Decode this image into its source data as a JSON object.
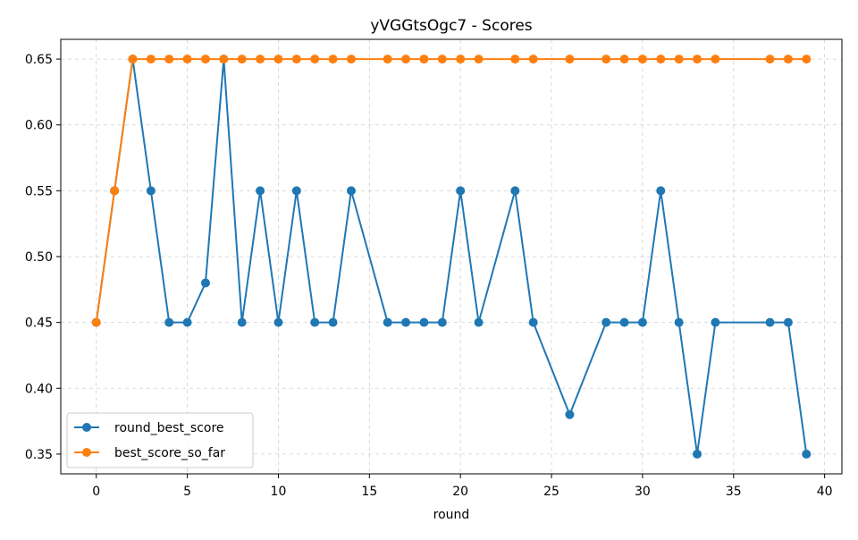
{
  "chart_data": {
    "type": "line",
    "title": "yVGGtsOgc7 - Scores",
    "xlabel": "round",
    "ylabel": "",
    "xlim": [
      -1.95,
      40.95
    ],
    "ylim": [
      0.335,
      0.665
    ],
    "x_ticks": [
      0,
      5,
      10,
      15,
      20,
      25,
      30,
      35,
      40
    ],
    "y_ticks": [
      0.35,
      0.4,
      0.45,
      0.5,
      0.55,
      0.6,
      0.65
    ],
    "grid": true,
    "legend_position": "lower-left",
    "series": [
      {
        "name": "round_best_score",
        "color": "#1f77b4",
        "x": [
          0,
          1,
          2,
          3,
          4,
          5,
          6,
          7,
          8,
          9,
          10,
          11,
          12,
          13,
          14,
          16,
          17,
          18,
          19,
          20,
          21,
          23,
          24,
          26,
          28,
          29,
          30,
          31,
          32,
          33,
          34,
          37,
          38,
          39
        ],
        "y": [
          0.45,
          0.55,
          0.65,
          0.55,
          0.45,
          0.45,
          0.48,
          0.65,
          0.45,
          0.55,
          0.45,
          0.55,
          0.45,
          0.45,
          0.55,
          0.45,
          0.45,
          0.45,
          0.45,
          0.55,
          0.45,
          0.55,
          0.45,
          0.38,
          0.45,
          0.45,
          0.45,
          0.55,
          0.45,
          0.35,
          0.45,
          0.45,
          0.45,
          0.35
        ]
      },
      {
        "name": "best_score_so_far",
        "color": "#ff7f0e",
        "x": [
          0,
          1,
          2,
          3,
          4,
          5,
          6,
          7,
          8,
          9,
          10,
          11,
          12,
          13,
          14,
          16,
          17,
          18,
          19,
          20,
          21,
          23,
          24,
          26,
          28,
          29,
          30,
          31,
          32,
          33,
          34,
          37,
          38,
          39
        ],
        "y": [
          0.45,
          0.55,
          0.65,
          0.65,
          0.65,
          0.65,
          0.65,
          0.65,
          0.65,
          0.65,
          0.65,
          0.65,
          0.65,
          0.65,
          0.65,
          0.65,
          0.65,
          0.65,
          0.65,
          0.65,
          0.65,
          0.65,
          0.65,
          0.65,
          0.65,
          0.65,
          0.65,
          0.65,
          0.65,
          0.65,
          0.65,
          0.65,
          0.65,
          0.65
        ]
      }
    ]
  }
}
